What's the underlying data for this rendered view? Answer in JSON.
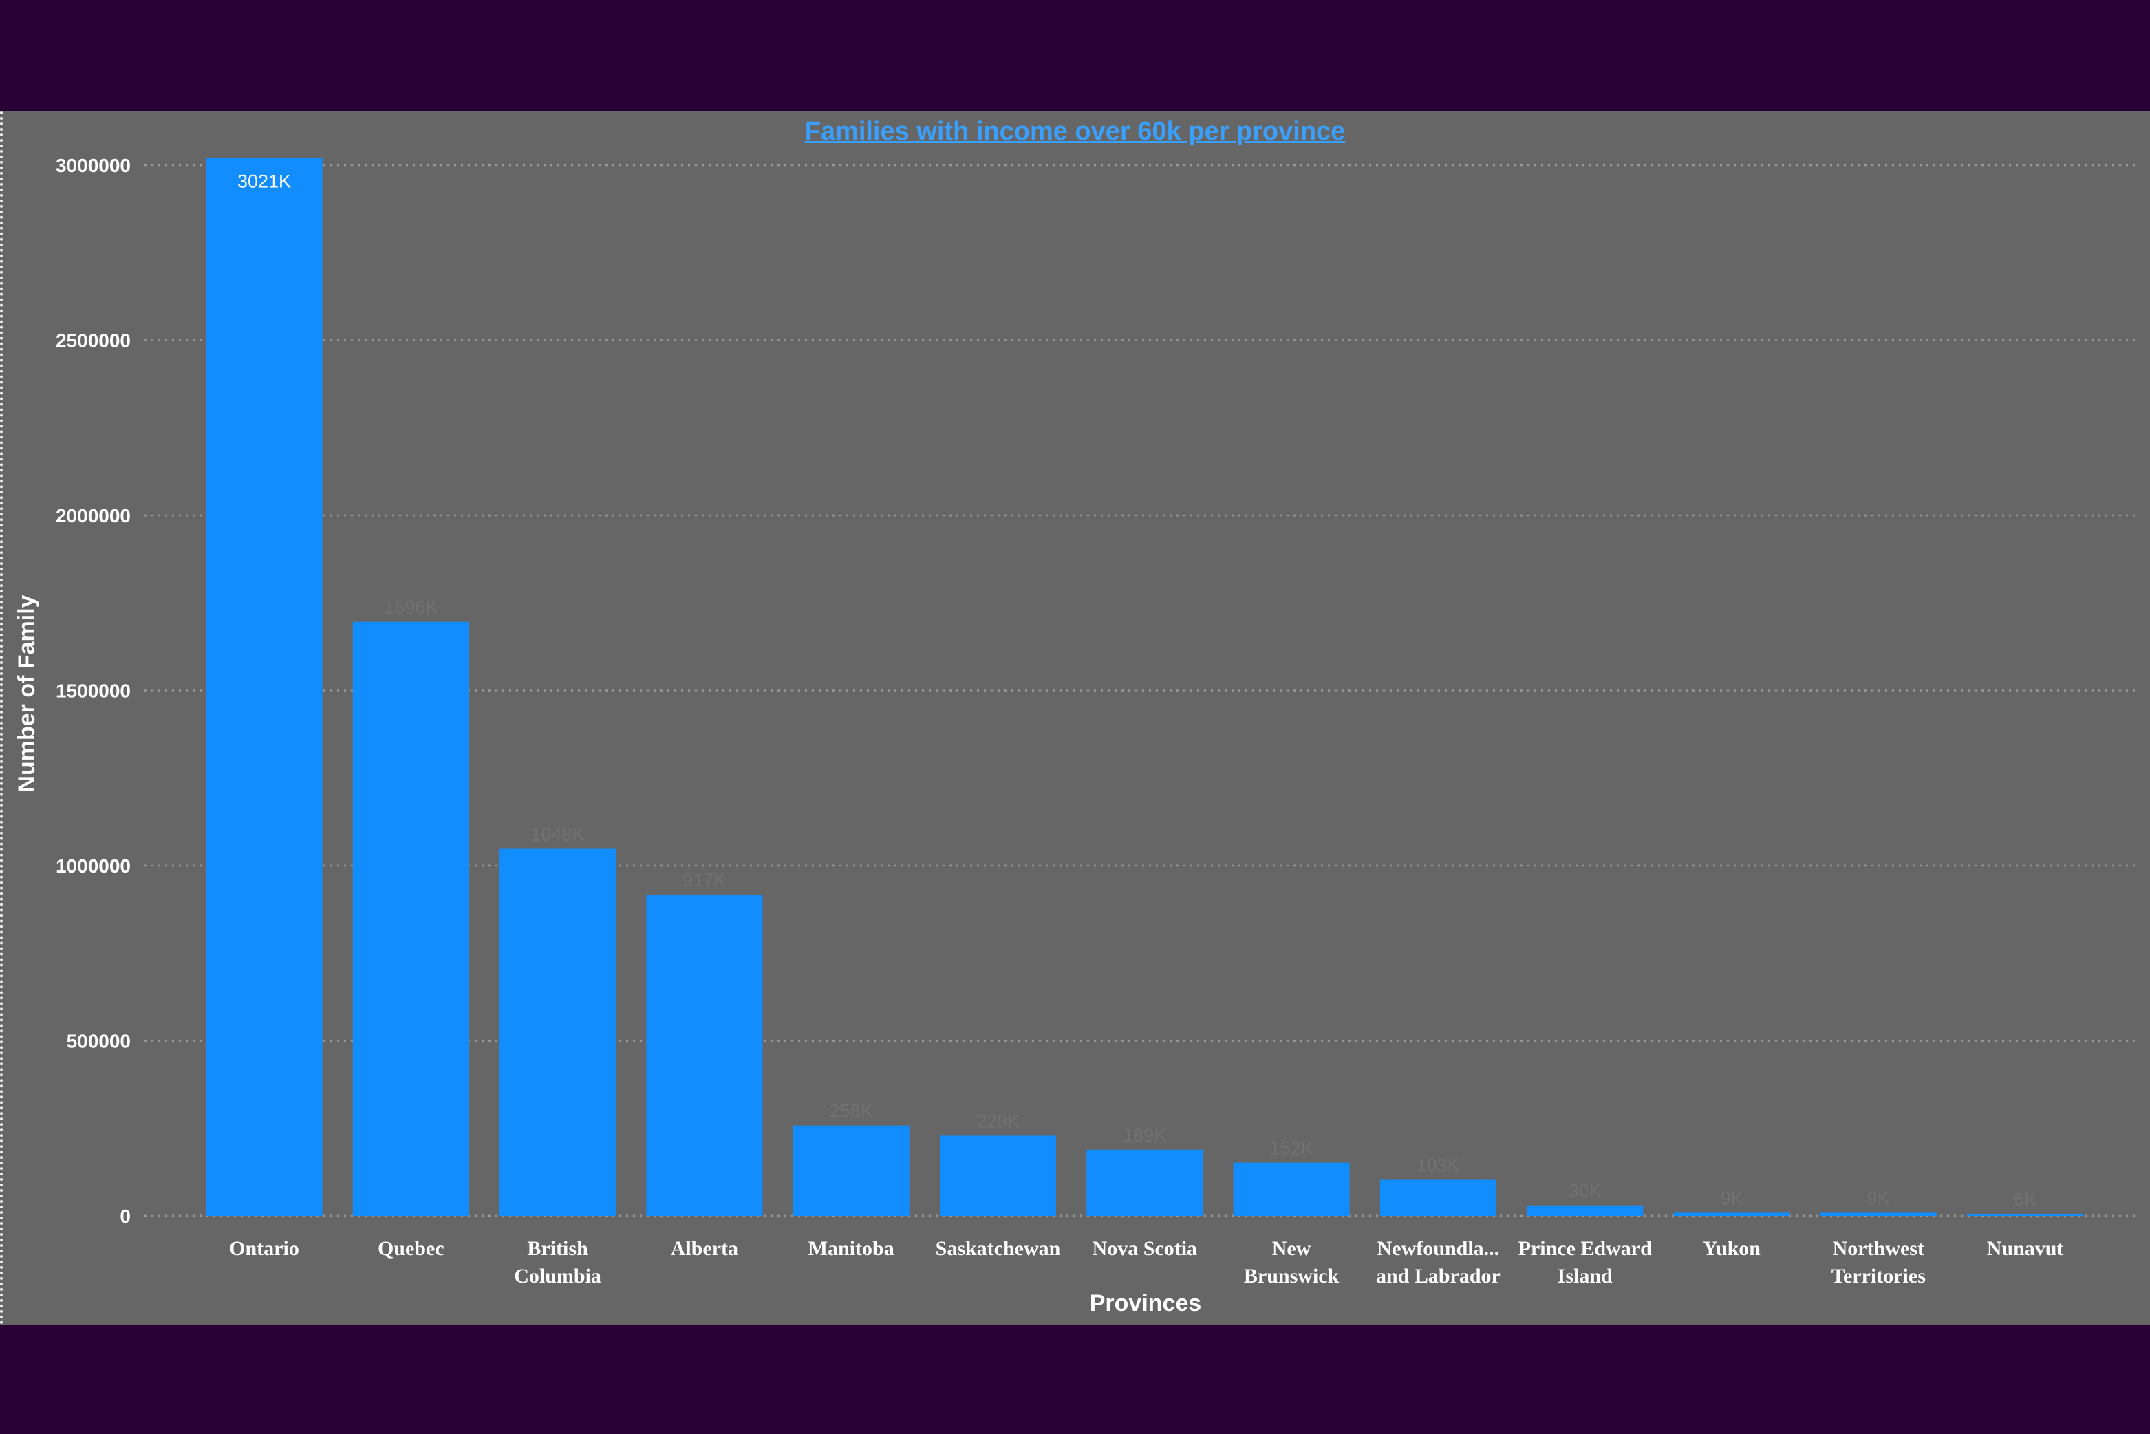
{
  "chart_data": {
    "type": "bar",
    "title": "Families with income over 60k per province",
    "xlabel": "Provinces",
    "ylabel": "Number of Family",
    "ylim": [
      0,
      3000000
    ],
    "yticks": [
      0,
      500000,
      1000000,
      1500000,
      2000000,
      2500000,
      3000000
    ],
    "ytick_labels": [
      "0",
      "500000",
      "1000000",
      "1500000",
      "2000000",
      "2500000",
      "3000000"
    ],
    "grid": "horizontal dotted",
    "bar_color": "#118dff",
    "categories": [
      [
        "Ontario"
      ],
      [
        "Quebec"
      ],
      [
        "British",
        "Columbia"
      ],
      [
        "Alberta"
      ],
      [
        "Manitoba"
      ],
      [
        "Saskatchewan"
      ],
      [
        "Nova Scotia"
      ],
      [
        "New",
        "Brunswick"
      ],
      [
        "Newfoundla...",
        "and Labrador"
      ],
      [
        "Prince Edward",
        "Island"
      ],
      [
        "Yukon"
      ],
      [
        "Northwest",
        "Territories"
      ],
      [
        "Nunavut"
      ]
    ],
    "values": [
      3021000,
      1696000,
      1048000,
      917000,
      258000,
      229000,
      189000,
      152000,
      103000,
      30000,
      9000,
      9000,
      6000
    ],
    "data_labels": [
      "3021K",
      "1696K",
      "1048K",
      "917K",
      "258K",
      "229K",
      "189K",
      "152K",
      "103K",
      "30K",
      "9K",
      "9K",
      "6K"
    ]
  }
}
